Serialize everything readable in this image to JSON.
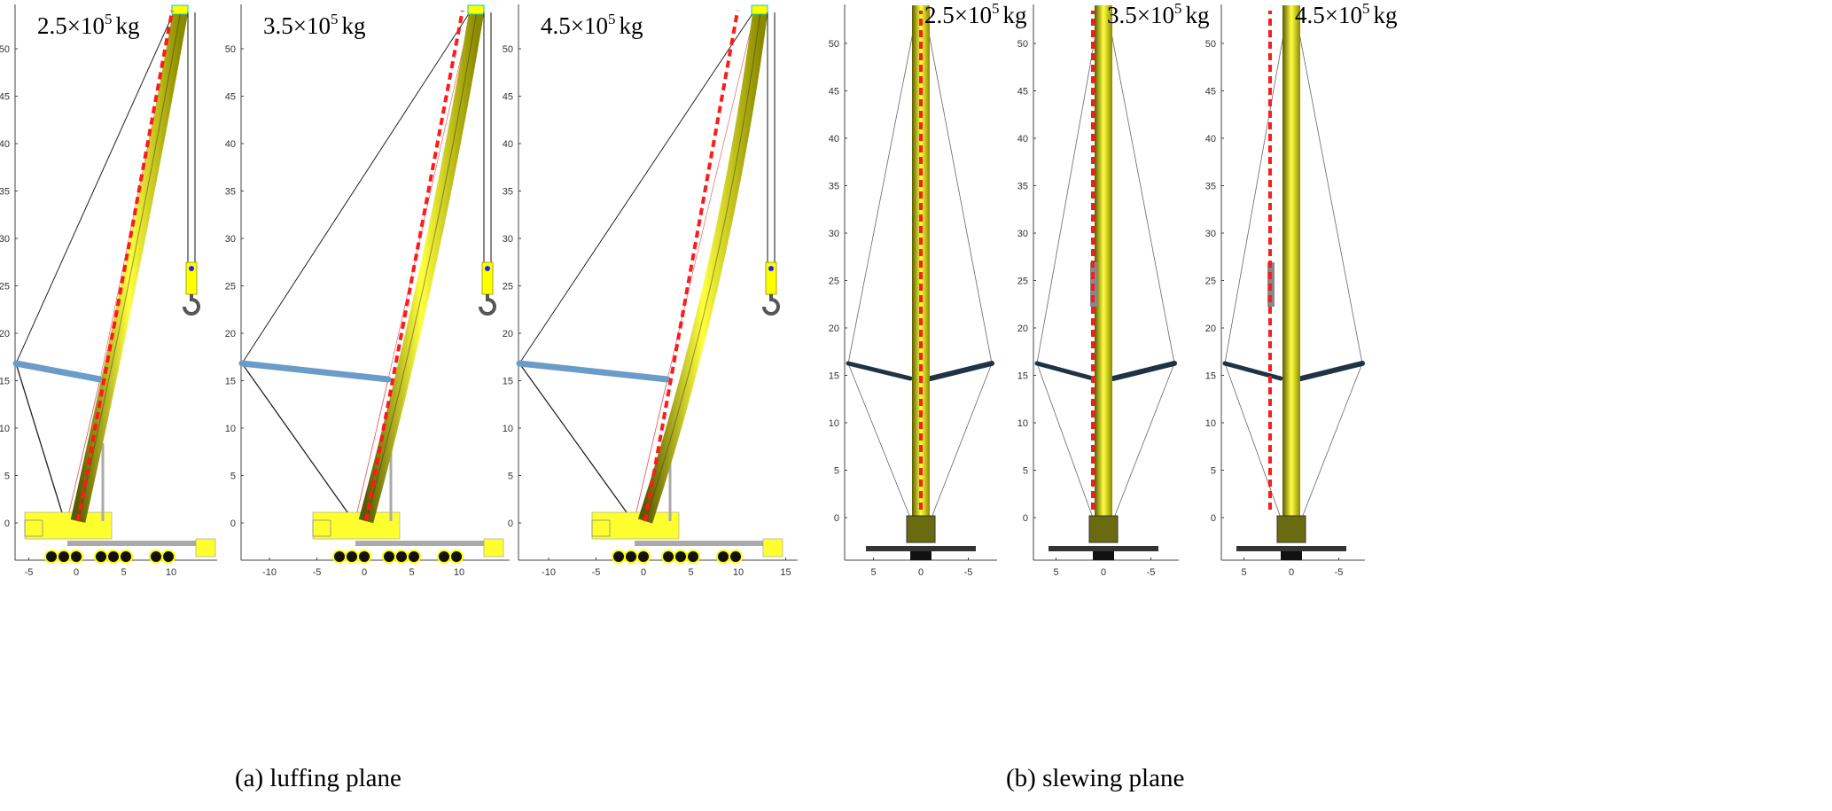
{
  "figure": {
    "captions": [
      "(a) luffing plane",
      "(b) slewing plane"
    ],
    "colors": {
      "boom": "#d8d800",
      "boom_shadow": "#5a5a00",
      "deflection_line": "#ff1a1a",
      "superlift_luffing": "#6a9cc8",
      "superlift_slewing": "#1f3344",
      "cable": "#222222"
    },
    "panels": [
      {
        "plane": "luffing",
        "mass_base": "2.5",
        "mass_exp": "5",
        "mass_unit": "kg",
        "x_ticks": [
          "-5",
          "0",
          "5",
          "10"
        ],
        "x_values": [
          -5,
          0,
          5,
          10
        ],
        "y_ticks": [
          "0",
          "5",
          "10",
          "15",
          "20",
          "25",
          "30",
          "35",
          "40",
          "45",
          "50"
        ]
      },
      {
        "plane": "luffing",
        "mass_base": "3.5",
        "mass_exp": "5",
        "mass_unit": "kg",
        "x_ticks": [
          "-10",
          "-5",
          "0",
          "5",
          "10"
        ],
        "x_values": [
          -10,
          -5,
          0,
          5,
          10
        ],
        "y_ticks": [
          "0",
          "5",
          "10",
          "15",
          "20",
          "25",
          "30",
          "35",
          "40",
          "45",
          "50"
        ]
      },
      {
        "plane": "luffing",
        "mass_base": "4.5",
        "mass_exp": "5",
        "mass_unit": "kg",
        "x_ticks": [
          "-10",
          "-5",
          "0",
          "5",
          "10",
          "15"
        ],
        "x_values": [
          -10,
          -5,
          0,
          5,
          10,
          15
        ],
        "y_ticks": [
          "0",
          "5",
          "10",
          "15",
          "20",
          "25",
          "30",
          "35",
          "40",
          "45",
          "50"
        ]
      },
      {
        "plane": "slewing",
        "mass_base": "2.5",
        "mass_exp": "5",
        "mass_unit": "kg",
        "x_ticks": [
          "5",
          "0",
          "-5"
        ],
        "x_values": [
          5,
          0,
          -5
        ],
        "y_ticks": [
          "0",
          "5",
          "10",
          "15",
          "20",
          "25",
          "30",
          "35",
          "40",
          "45",
          "50"
        ]
      },
      {
        "plane": "slewing",
        "mass_base": "3.5",
        "mass_exp": "5",
        "mass_unit": "kg",
        "x_ticks": [
          "5",
          "0",
          "-5"
        ],
        "x_values": [
          5,
          0,
          -5
        ],
        "y_ticks": [
          "0",
          "5",
          "10",
          "15",
          "20",
          "25",
          "30",
          "35",
          "40",
          "45",
          "50"
        ]
      },
      {
        "plane": "slewing",
        "mass_base": "4.5",
        "mass_exp": "5",
        "mass_unit": "kg",
        "x_ticks": [
          "5",
          "0",
          "-5"
        ],
        "x_values": [
          5,
          0,
          -5
        ],
        "y_ticks": [
          "0",
          "5",
          "10",
          "15",
          "20",
          "25",
          "30",
          "35",
          "40",
          "45",
          "50"
        ]
      }
    ]
  }
}
